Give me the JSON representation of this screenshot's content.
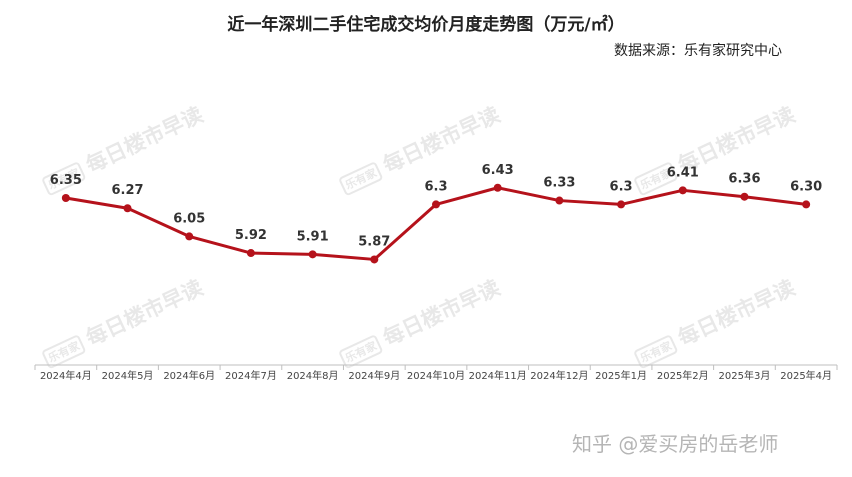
{
  "chart_data": {
    "type": "line",
    "title": "近一年深圳二手住宅成交均价月度走势图（万元/㎡）",
    "source": "数据来源：乐有家研究中心",
    "categories": [
      "2024年4月",
      "2024年5月",
      "2024年6月",
      "2024年7月",
      "2024年8月",
      "2024年9月",
      "2024年10月",
      "2024年11月",
      "2024年12月",
      "2025年1月",
      "2025年2月",
      "2025年3月",
      "2025年4月"
    ],
    "values": [
      6.35,
      6.27,
      6.05,
      5.92,
      5.91,
      5.87,
      6.3,
      6.43,
      6.33,
      6.3,
      6.41,
      6.36,
      6.3
    ],
    "data_labels": [
      "6.35",
      "6.27",
      "6.05",
      "5.92",
      "5.91",
      "5.87",
      "6.3",
      "6.43",
      "6.33",
      "6.3",
      "6.41",
      "6.36",
      "6.30"
    ],
    "line_color": "#b5121b",
    "grid": false,
    "legend": false
  },
  "watermark": {
    "logo": "乐有家",
    "text": "每日楼市早读"
  },
  "credit": "知乎 @爱买房的岳老师"
}
